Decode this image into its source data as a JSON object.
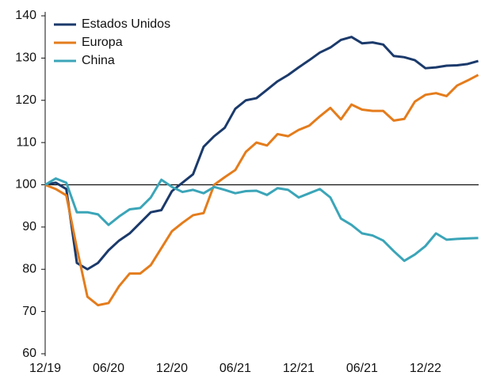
{
  "chart_data": {
    "type": "line",
    "categories": [
      "12/19",
      null,
      null,
      null,
      null,
      null,
      "06/20",
      null,
      null,
      null,
      null,
      null,
      "12/20",
      null,
      null,
      null,
      null,
      null,
      "06/21",
      null,
      null,
      null,
      null,
      null,
      "12/21",
      null,
      null,
      null,
      null,
      null,
      "06/21",
      null,
      null,
      null,
      null,
      null,
      "12/22",
      null,
      null,
      null,
      null,
      null
    ],
    "series": [
      {
        "name": "Estados Unidos",
        "color": "#1b3a6b",
        "values": [
          100,
          100.5,
          99,
          81.5,
          80,
          81.5,
          84.5,
          86.8,
          88.5,
          91,
          93.5,
          94,
          98.5,
          100.5,
          102.5,
          109,
          111.5,
          113.5,
          118,
          120,
          120.5,
          122.5,
          124.5,
          126,
          127.8,
          129.5,
          131.3,
          132.5,
          134.3,
          135,
          133.5,
          133.7,
          133.2,
          130.5,
          130.2,
          129.5,
          127.6,
          127.8,
          128.2,
          128.3,
          128.6,
          129.3
        ]
      },
      {
        "name": "Europa",
        "color": "#e47c1c",
        "values": [
          100,
          99,
          97.5,
          85,
          73.5,
          71.5,
          72,
          76,
          79,
          79,
          81,
          85,
          89,
          91,
          92.8,
          93.3,
          100,
          101.8,
          103.5,
          107.8,
          110,
          109.3,
          112,
          111.5,
          113,
          114,
          116.2,
          118.2,
          115.5,
          119,
          117.8,
          117.5,
          117.5,
          115.2,
          115.6,
          119.7,
          121.3,
          121.7,
          121,
          123.5,
          124.7,
          126
        ]
      },
      {
        "name": "China",
        "color": "#3ba5b8",
        "values": [
          100,
          101.5,
          100.5,
          93.5,
          93.5,
          93,
          90.5,
          92.5,
          94.2,
          94.5,
          97,
          101.2,
          99.5,
          98.3,
          98.8,
          98,
          99.5,
          98.8,
          98,
          98.5,
          98.6,
          97.6,
          99.2,
          98.8,
          97,
          98,
          99,
          97,
          92,
          90.5,
          88.5,
          88,
          86.8,
          84.3,
          82,
          83.5,
          85.5,
          88.5,
          87,
          87.2,
          87.3,
          87.4
        ]
      }
    ],
    "ylim": [
      60,
      140
    ],
    "yticks": [
      60,
      70,
      80,
      90,
      100,
      110,
      120,
      130,
      140
    ],
    "hline": 100,
    "legend": "top-left"
  }
}
